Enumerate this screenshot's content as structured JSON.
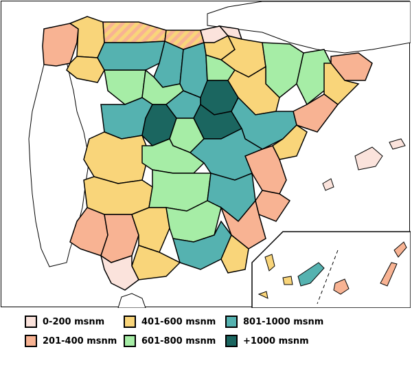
{
  "legend": {
    "items": [
      {
        "label": "0-200 msnm",
        "color": "#fbe3dc"
      },
      {
        "label": "201-400 msnm",
        "color": "#f8b393"
      },
      {
        "label": "401-600 msnm",
        "color": "#f9d57a"
      },
      {
        "label": "601-800 msnm",
        "color": "#a6eda6"
      },
      {
        "label": "801-1000 msnm",
        "color": "#55b2b0"
      },
      {
        "label": "+1000 msnm",
        "color": "#1b6660"
      }
    ]
  },
  "colors": {
    "sea": "#ffffff",
    "border": "#000000",
    "portugal": "#ffffff",
    "france": "#ffffff",
    "hatch": "#f9d57a"
  },
  "icons": {
    "province": "province-shape",
    "island": "island-shape"
  }
}
